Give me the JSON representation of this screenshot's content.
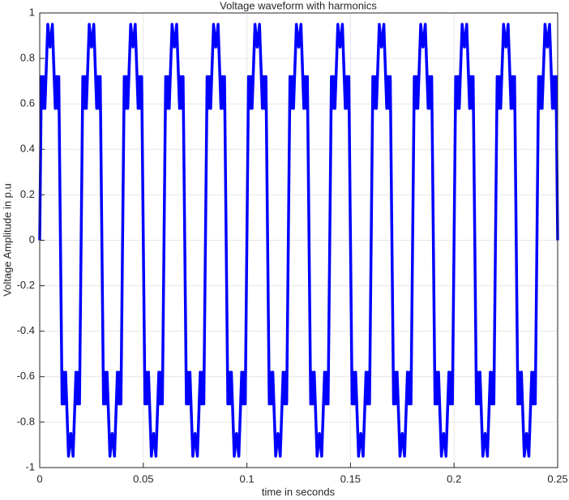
{
  "chart_data": {
    "type": "line",
    "title": "Voltage waveform with harmonics",
    "x_label": "time in seconds",
    "y_label": "Voltage Amplitude in p.u",
    "xlim": [
      0,
      0.25
    ],
    "xticks": [
      0,
      0.05,
      0.1,
      0.15,
      0.2,
      0.25
    ],
    "ylim": [
      -1,
      1
    ],
    "yticks": [
      -1,
      -0.8,
      -0.6,
      -0.4,
      -0.2,
      0,
      0.2,
      0.4,
      0.6,
      0.8,
      1
    ],
    "grid": true,
    "x": [
      0,
      0.0008,
      0.0013,
      0.0018,
      0.0025,
      0.0039,
      0.005,
      0.0061,
      0.0075,
      0.0082,
      0.0087,
      0.0092,
      0.01,
      0.0108,
      0.0113,
      0.0118,
      0.0125,
      0.0139,
      0.015,
      0.0161,
      0.0175,
      0.0182,
      0.0187,
      0.0192,
      0.02,
      0.0208,
      0.0213,
      0.0218,
      0.0225,
      0.0239,
      0.025,
      0.0261,
      0.0275,
      0.0282,
      0.0287,
      0.0292,
      0.03,
      0.0308,
      0.0313,
      0.0318,
      0.0325,
      0.0339,
      0.035,
      0.0361,
      0.0375,
      0.0382,
      0.0387,
      0.0392,
      0.04,
      0.0408,
      0.0413,
      0.0418,
      0.0425,
      0.0439,
      0.045,
      0.0461,
      0.0475,
      0.0482,
      0.0487,
      0.0492,
      0.05,
      0.0508,
      0.0513,
      0.0518,
      0.0525,
      0.0539,
      0.055,
      0.0561,
      0.0575,
      0.0582,
      0.0587,
      0.0592,
      0.06,
      0.0608,
      0.0613,
      0.0618,
      0.0625,
      0.0639,
      0.065,
      0.0661,
      0.0675,
      0.0682,
      0.0687,
      0.0692,
      0.07,
      0.0708,
      0.0713,
      0.0718,
      0.0725,
      0.0739,
      0.075,
      0.0761,
      0.0775,
      0.0782,
      0.0787,
      0.0792,
      0.08,
      0.0808,
      0.0813,
      0.0818,
      0.0825,
      0.0839,
      0.085,
      0.0861,
      0.0875,
      0.0882,
      0.0887,
      0.0892,
      0.09,
      0.0908,
      0.0913,
      0.0918,
      0.0925,
      0.0939,
      0.095,
      0.0961,
      0.0975,
      0.0982,
      0.0987,
      0.0992,
      0.1,
      0.1008,
      0.1013,
      0.1018,
      0.1025,
      0.1039,
      0.105,
      0.1061,
      0.1075,
      0.1082,
      0.1087,
      0.1092,
      0.11,
      0.1108,
      0.1113,
      0.1118,
      0.1125,
      0.1139,
      0.115,
      0.1161,
      0.1175,
      0.1182,
      0.1187,
      0.1192,
      0.12,
      0.1208,
      0.1213,
      0.1218,
      0.1225,
      0.1239,
      0.125,
      0.1261,
      0.1275,
      0.1282,
      0.1287,
      0.1292,
      0.13,
      0.1308,
      0.1313,
      0.1318,
      0.1325,
      0.1339,
      0.135,
      0.1361,
      0.1375,
      0.1382,
      0.1387,
      0.1392,
      0.14,
      0.1408,
      0.1413,
      0.1418,
      0.1425,
      0.1439,
      0.145,
      0.1461,
      0.1475,
      0.1482,
      0.1487,
      0.1492,
      0.15,
      0.1508,
      0.1513,
      0.1518,
      0.1525,
      0.1539,
      0.155,
      0.1561,
      0.1575,
      0.1582,
      0.1587,
      0.1592,
      0.16,
      0.1608,
      0.1613,
      0.1618,
      0.1625,
      0.1639,
      0.165,
      0.1661,
      0.1675,
      0.1682,
      0.1687,
      0.1692,
      0.17,
      0.1708,
      0.1713,
      0.1718,
      0.1725,
      0.1739,
      0.175,
      0.1761,
      0.1775,
      0.1782,
      0.1787,
      0.1792,
      0.18,
      0.1808,
      0.1813,
      0.1818,
      0.1825,
      0.1839,
      0.185,
      0.1861,
      0.1875,
      0.1882,
      0.1887,
      0.1892,
      0.19,
      0.1908,
      0.1913,
      0.1918,
      0.1925,
      0.1939,
      0.195,
      0.1961,
      0.1975,
      0.1982,
      0.1987,
      0.1992,
      0.2,
      0.2008,
      0.2013,
      0.2018,
      0.2025,
      0.2039,
      0.205,
      0.2061,
      0.2075,
      0.2082,
      0.2087,
      0.2092,
      0.21,
      0.2108,
      0.2113,
      0.2118,
      0.2125,
      0.2139,
      0.215,
      0.2161,
      0.2175,
      0.2182,
      0.2187,
      0.2192,
      0.22,
      0.2208,
      0.2213,
      0.2218,
      0.2225,
      0.2239,
      0.225,
      0.2261,
      0.2275,
      0.2282,
      0.2287,
      0.2292,
      0.23,
      0.2308,
      0.2313,
      0.2318,
      0.2325,
      0.2339,
      0.235,
      0.2361,
      0.2375,
      0.2382,
      0.2387,
      0.2392,
      0.24,
      0.2408,
      0.2413,
      0.2418,
      0.2425,
      0.2439,
      0.245,
      0.2461,
      0.2475,
      0.2482,
      0.2487,
      0.2492,
      0.25
    ],
    "series": [
      {
        "color": "#0000ff",
        "values": [
          0,
          0.72,
          0.58,
          0.72,
          0.58,
          0.95,
          0.85,
          0.95,
          0.58,
          0.72,
          0.58,
          0.72,
          0,
          -0.72,
          -0.58,
          -0.72,
          -0.58,
          -0.95,
          -0.85,
          -0.95,
          -0.58,
          -0.72,
          -0.58,
          -0.72,
          0,
          0.72,
          0.58,
          0.72,
          0.58,
          0.95,
          0.85,
          0.95,
          0.58,
          0.72,
          0.58,
          0.72,
          0,
          -0.72,
          -0.58,
          -0.72,
          -0.58,
          -0.95,
          -0.85,
          -0.95,
          -0.58,
          -0.72,
          -0.58,
          -0.72,
          0,
          0.72,
          0.58,
          0.72,
          0.58,
          0.95,
          0.85,
          0.95,
          0.58,
          0.72,
          0.58,
          0.72,
          0,
          -0.72,
          -0.58,
          -0.72,
          -0.58,
          -0.95,
          -0.85,
          -0.95,
          -0.58,
          -0.72,
          -0.58,
          -0.72,
          0,
          0.72,
          0.58,
          0.72,
          0.58,
          0.95,
          0.85,
          0.95,
          0.58,
          0.72,
          0.58,
          0.72,
          0,
          -0.72,
          -0.58,
          -0.72,
          -0.58,
          -0.95,
          -0.85,
          -0.95,
          -0.58,
          -0.72,
          -0.58,
          -0.72,
          0,
          0.72,
          0.58,
          0.72,
          0.58,
          0.95,
          0.85,
          0.95,
          0.58,
          0.72,
          0.58,
          0.72,
          0,
          -0.72,
          -0.58,
          -0.72,
          -0.58,
          -0.95,
          -0.85,
          -0.95,
          -0.58,
          -0.72,
          -0.58,
          -0.72,
          0,
          0.72,
          0.58,
          0.72,
          0.58,
          0.95,
          0.85,
          0.95,
          0.58,
          0.72,
          0.58,
          0.72,
          0,
          -0.72,
          -0.58,
          -0.72,
          -0.58,
          -0.95,
          -0.85,
          -0.95,
          -0.58,
          -0.72,
          -0.58,
          -0.72,
          0,
          0.72,
          0.58,
          0.72,
          0.58,
          0.95,
          0.85,
          0.95,
          0.58,
          0.72,
          0.58,
          0.72,
          0,
          -0.72,
          -0.58,
          -0.72,
          -0.58,
          -0.95,
          -0.85,
          -0.95,
          -0.58,
          -0.72,
          -0.58,
          -0.72,
          0,
          0.72,
          0.58,
          0.72,
          0.58,
          0.95,
          0.85,
          0.95,
          0.58,
          0.72,
          0.58,
          0.72,
          0,
          -0.72,
          -0.58,
          -0.72,
          -0.58,
          -0.95,
          -0.85,
          -0.95,
          -0.58,
          -0.72,
          -0.58,
          -0.72,
          0,
          0.72,
          0.58,
          0.72,
          0.58,
          0.95,
          0.85,
          0.95,
          0.58,
          0.72,
          0.58,
          0.72,
          0,
          -0.72,
          -0.58,
          -0.72,
          -0.58,
          -0.95,
          -0.85,
          -0.95,
          -0.58,
          -0.72,
          -0.58,
          -0.72,
          0,
          0.72,
          0.58,
          0.72,
          0.58,
          0.95,
          0.85,
          0.95,
          0.58,
          0.72,
          0.58,
          0.72,
          0,
          -0.72,
          -0.58,
          -0.72,
          -0.58,
          -0.95,
          -0.85,
          -0.95,
          -0.58,
          -0.72,
          -0.58,
          -0.72,
          0,
          0.72,
          0.58,
          0.72,
          0.58,
          0.95,
          0.85,
          0.95,
          0.58,
          0.72,
          0.58,
          0.72,
          0,
          -0.72,
          -0.58,
          -0.72,
          -0.58,
          -0.95,
          -0.85,
          -0.95,
          -0.58,
          -0.72,
          -0.58,
          -0.72,
          0,
          0.72,
          0.58,
          0.72,
          0.58,
          0.95,
          0.85,
          0.95,
          0.58,
          0.72,
          0.58,
          0.72,
          0,
          -0.72,
          -0.58,
          -0.72,
          -0.58,
          -0.95,
          -0.85,
          -0.95,
          -0.58,
          -0.72,
          -0.58,
          -0.72,
          0,
          0.72,
          0.58,
          0.72,
          0.58,
          0.95,
          0.85,
          0.95,
          0.58,
          0.72,
          0.58,
          0.72,
          0
        ]
      }
    ]
  }
}
